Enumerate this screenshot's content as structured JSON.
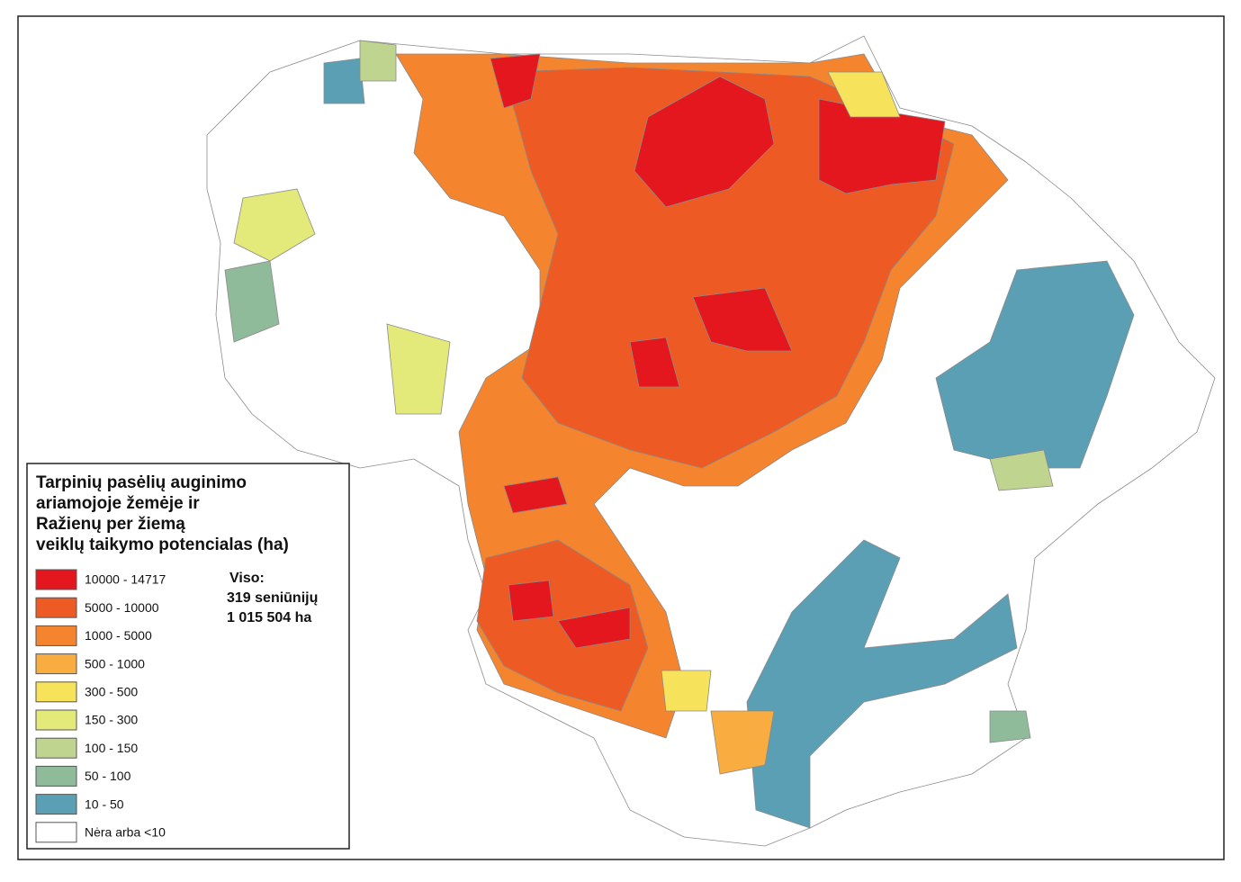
{
  "legend": {
    "title": [
      "Tarpinių pasėlių auginimo",
      "ariamojoje žemėje ir",
      "Ražienų per žiemą",
      "veiklų taikymo potencialas (ha)"
    ],
    "items": [
      {
        "label": "10000 - 14717",
        "color": "#e3171d"
      },
      {
        "label": "5000 - 10000",
        "color": "#ee5a24"
      },
      {
        "label": "1000 - 5000",
        "color": "#f4842e"
      },
      {
        "label": "500 - 1000",
        "color": "#f9ac3f"
      },
      {
        "label": "300 - 500",
        "color": "#f7e25b"
      },
      {
        "label": "150 - 300",
        "color": "#e3ea7a"
      },
      {
        "label": "100 - 150",
        "color": "#bfd58f"
      },
      {
        "label": "50 - 100",
        "color": "#8fbb9a"
      },
      {
        "label": "10 - 50",
        "color": "#5b9fb5"
      },
      {
        "label": "Nėra arba <10",
        "color": "#ffffff"
      }
    ]
  },
  "summary": {
    "label": "Viso:",
    "lines": [
      "319 seniūnijų",
      "1 015 504 ha"
    ]
  }
}
